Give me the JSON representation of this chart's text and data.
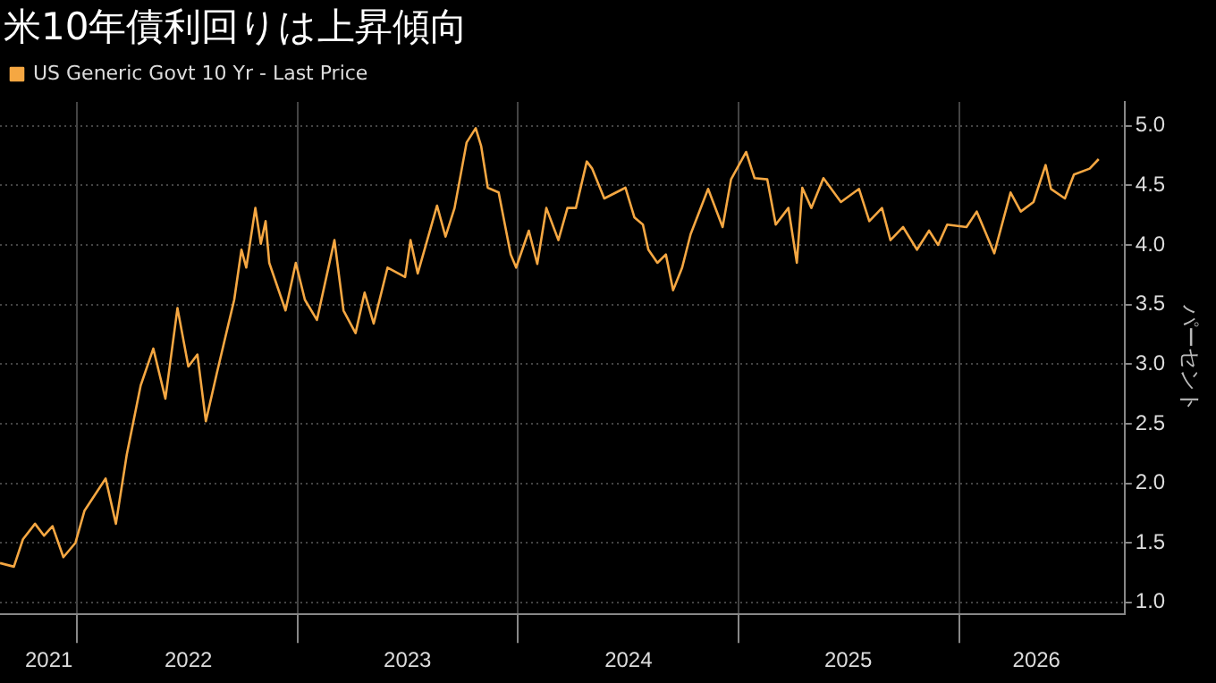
{
  "chart_data": {
    "type": "line",
    "title": "米10年債利回りは上昇傾向",
    "ylabel": "パーセント",
    "legend": "top left",
    "grid": true,
    "xlim": [
      "2021-08-26",
      "2026-10-02"
    ],
    "ylim": [
      0.9,
      5.2
    ],
    "xticks": [
      {
        "value": "2021-11-15",
        "label": "2021"
      },
      {
        "value": "2022-01-01",
        "label": null
      },
      {
        "value": "2022-07-04",
        "label": "2022"
      },
      {
        "value": "2023-01-01",
        "label": null
      },
      {
        "value": "2023-07-02",
        "label": "2023"
      },
      {
        "value": "2024-01-01",
        "label": null
      },
      {
        "value": "2024-07-02",
        "label": "2024"
      },
      {
        "value": "2025-01-01",
        "label": null
      },
      {
        "value": "2025-07-01",
        "label": "2025"
      },
      {
        "value": "2026-01-01",
        "label": null
      },
      {
        "value": "2026-05-09",
        "label": "2026"
      }
    ],
    "yticks": [
      {
        "value": 1,
        "label": "1.0"
      },
      {
        "value": 1.5,
        "label": "1.5"
      },
      {
        "value": 2,
        "label": "2.0"
      },
      {
        "value": 2.5,
        "label": "2.5"
      },
      {
        "value": 3,
        "label": "3.0"
      },
      {
        "value": 3.5,
        "label": "3.5"
      },
      {
        "value": 4,
        "label": "4.0"
      },
      {
        "value": 4.5,
        "label": "4.5"
      },
      {
        "value": 5,
        "label": "5.0"
      }
    ],
    "series": [
      {
        "name": "US Generic Govt 10 Yr - Last Price",
        "color": "#f5a742",
        "x": [
          "2021-08-26",
          "2021-09-18",
          "2021-10-03",
          "2021-10-23",
          "2021-11-07",
          "2021-11-21",
          "2021-12-09",
          "2021-12-29",
          "2022-01-13",
          "2022-02-17",
          "2022-03-06",
          "2022-03-24",
          "2022-04-16",
          "2022-05-07",
          "2022-05-27",
          "2022-06-16",
          "2022-07-04",
          "2022-07-19",
          "2022-08-02",
          "2022-08-20",
          "2022-09-18",
          "2022-09-30",
          "2022-10-08",
          "2022-10-23",
          "2022-11-01",
          "2022-11-09",
          "2022-11-15",
          "2022-12-12",
          "2022-12-29",
          "2023-01-13",
          "2023-02-02",
          "2023-03-03",
          "2023-03-18",
          "2023-04-07",
          "2023-04-22",
          "2023-05-07",
          "2023-05-30",
          "2023-06-28",
          "2023-07-07",
          "2023-07-19",
          "2023-08-20",
          "2023-09-03",
          "2023-09-18",
          "2023-10-08",
          "2023-10-23",
          "2023-11-01",
          "2023-11-12",
          "2023-11-30",
          "2023-12-20",
          "2023-12-29",
          "2024-01-19",
          "2024-02-02",
          "2024-02-17",
          "2024-03-08",
          "2024-03-23",
          "2024-04-06",
          "2024-04-24",
          "2024-05-03",
          "2024-05-23",
          "2024-06-27",
          "2024-07-12",
          "2024-07-26",
          "2024-08-04",
          "2024-08-19",
          "2024-09-02",
          "2024-09-14",
          "2024-09-29",
          "2024-10-13",
          "2024-11-11",
          "2024-12-05",
          "2024-12-19",
          "2025-01-13",
          "2025-01-27",
          "2025-02-17",
          "2025-03-03",
          "2025-03-24",
          "2025-04-07",
          "2025-04-16",
          "2025-05-01",
          "2025-05-21",
          "2025-06-19",
          "2025-07-19",
          "2025-08-05",
          "2025-08-26",
          "2025-09-09",
          "2025-09-30",
          "2025-10-23",
          "2025-11-12",
          "2025-11-27",
          "2025-12-12",
          "2026-01-13",
          "2026-01-30",
          "2026-02-28",
          "2026-03-27",
          "2026-04-13",
          "2026-05-04",
          "2026-05-24",
          "2026-06-02",
          "2026-06-25",
          "2026-07-10",
          "2026-08-05",
          "2026-08-20"
        ],
        "values": [
          1.33,
          1.3,
          1.53,
          1.66,
          1.56,
          1.64,
          1.38,
          1.5,
          1.77,
          2.04,
          1.66,
          2.24,
          2.82,
          3.13,
          2.71,
          3.47,
          2.98,
          3.08,
          2.52,
          2.92,
          3.54,
          3.96,
          3.81,
          4.31,
          4.01,
          4.2,
          3.85,
          3.45,
          3.85,
          3.54,
          3.37,
          4.04,
          3.45,
          3.26,
          3.6,
          3.34,
          3.81,
          3.73,
          4.04,
          3.76,
          4.33,
          4.07,
          4.31,
          4.86,
          4.98,
          4.83,
          4.48,
          4.44,
          3.92,
          3.81,
          4.12,
          3.84,
          4.31,
          4.04,
          4.31,
          4.31,
          4.7,
          4.64,
          4.39,
          4.48,
          4.23,
          4.17,
          3.96,
          3.85,
          3.92,
          3.62,
          3.81,
          4.09,
          4.47,
          4.15,
          4.55,
          4.78,
          4.56,
          4.55,
          4.17,
          4.31,
          3.85,
          4.48,
          4.31,
          4.56,
          4.36,
          4.47,
          4.2,
          4.31,
          4.04,
          4.15,
          3.96,
          4.12,
          4.0,
          4.17,
          4.15,
          4.28,
          3.93,
          4.44,
          4.28,
          4.36,
          4.67,
          4.47,
          4.39,
          4.59,
          4.64,
          4.72
        ]
      }
    ]
  }
}
